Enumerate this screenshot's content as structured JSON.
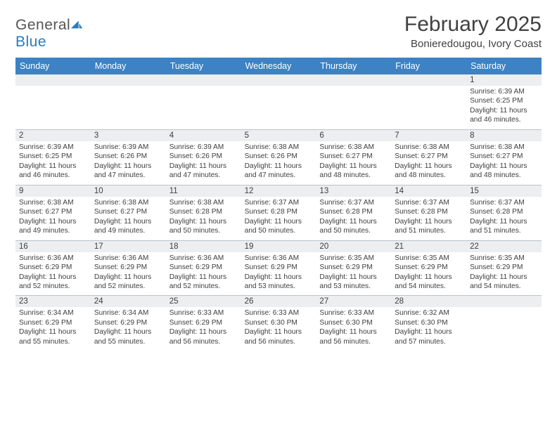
{
  "brand": {
    "name_general": "General",
    "name_blue": "Blue"
  },
  "title": "February 2025",
  "location": "Bonieredougou, Ivory Coast",
  "colors": {
    "header_bg": "#3c82c4",
    "daynum_bg": "#eceeef",
    "border": "#b9c3cc",
    "text": "#3e3e3e"
  },
  "weekdays": [
    "Sunday",
    "Monday",
    "Tuesday",
    "Wednesday",
    "Thursday",
    "Friday",
    "Saturday"
  ],
  "grid": [
    [
      {
        "n": "",
        "t": ""
      },
      {
        "n": "",
        "t": ""
      },
      {
        "n": "",
        "t": ""
      },
      {
        "n": "",
        "t": ""
      },
      {
        "n": "",
        "t": ""
      },
      {
        "n": "",
        "t": ""
      },
      {
        "n": "1",
        "t": "Sunrise: 6:39 AM\nSunset: 6:25 PM\nDaylight: 11 hours and 46 minutes."
      }
    ],
    [
      {
        "n": "2",
        "t": "Sunrise: 6:39 AM\nSunset: 6:25 PM\nDaylight: 11 hours and 46 minutes."
      },
      {
        "n": "3",
        "t": "Sunrise: 6:39 AM\nSunset: 6:26 PM\nDaylight: 11 hours and 47 minutes."
      },
      {
        "n": "4",
        "t": "Sunrise: 6:39 AM\nSunset: 6:26 PM\nDaylight: 11 hours and 47 minutes."
      },
      {
        "n": "5",
        "t": "Sunrise: 6:38 AM\nSunset: 6:26 PM\nDaylight: 11 hours and 47 minutes."
      },
      {
        "n": "6",
        "t": "Sunrise: 6:38 AM\nSunset: 6:27 PM\nDaylight: 11 hours and 48 minutes."
      },
      {
        "n": "7",
        "t": "Sunrise: 6:38 AM\nSunset: 6:27 PM\nDaylight: 11 hours and 48 minutes."
      },
      {
        "n": "8",
        "t": "Sunrise: 6:38 AM\nSunset: 6:27 PM\nDaylight: 11 hours and 48 minutes."
      }
    ],
    [
      {
        "n": "9",
        "t": "Sunrise: 6:38 AM\nSunset: 6:27 PM\nDaylight: 11 hours and 49 minutes."
      },
      {
        "n": "10",
        "t": "Sunrise: 6:38 AM\nSunset: 6:27 PM\nDaylight: 11 hours and 49 minutes."
      },
      {
        "n": "11",
        "t": "Sunrise: 6:38 AM\nSunset: 6:28 PM\nDaylight: 11 hours and 50 minutes."
      },
      {
        "n": "12",
        "t": "Sunrise: 6:37 AM\nSunset: 6:28 PM\nDaylight: 11 hours and 50 minutes."
      },
      {
        "n": "13",
        "t": "Sunrise: 6:37 AM\nSunset: 6:28 PM\nDaylight: 11 hours and 50 minutes."
      },
      {
        "n": "14",
        "t": "Sunrise: 6:37 AM\nSunset: 6:28 PM\nDaylight: 11 hours and 51 minutes."
      },
      {
        "n": "15",
        "t": "Sunrise: 6:37 AM\nSunset: 6:28 PM\nDaylight: 11 hours and 51 minutes."
      }
    ],
    [
      {
        "n": "16",
        "t": "Sunrise: 6:36 AM\nSunset: 6:29 PM\nDaylight: 11 hours and 52 minutes."
      },
      {
        "n": "17",
        "t": "Sunrise: 6:36 AM\nSunset: 6:29 PM\nDaylight: 11 hours and 52 minutes."
      },
      {
        "n": "18",
        "t": "Sunrise: 6:36 AM\nSunset: 6:29 PM\nDaylight: 11 hours and 52 minutes."
      },
      {
        "n": "19",
        "t": "Sunrise: 6:36 AM\nSunset: 6:29 PM\nDaylight: 11 hours and 53 minutes."
      },
      {
        "n": "20",
        "t": "Sunrise: 6:35 AM\nSunset: 6:29 PM\nDaylight: 11 hours and 53 minutes."
      },
      {
        "n": "21",
        "t": "Sunrise: 6:35 AM\nSunset: 6:29 PM\nDaylight: 11 hours and 54 minutes."
      },
      {
        "n": "22",
        "t": "Sunrise: 6:35 AM\nSunset: 6:29 PM\nDaylight: 11 hours and 54 minutes."
      }
    ],
    [
      {
        "n": "23",
        "t": "Sunrise: 6:34 AM\nSunset: 6:29 PM\nDaylight: 11 hours and 55 minutes."
      },
      {
        "n": "24",
        "t": "Sunrise: 6:34 AM\nSunset: 6:29 PM\nDaylight: 11 hours and 55 minutes."
      },
      {
        "n": "25",
        "t": "Sunrise: 6:33 AM\nSunset: 6:29 PM\nDaylight: 11 hours and 56 minutes."
      },
      {
        "n": "26",
        "t": "Sunrise: 6:33 AM\nSunset: 6:30 PM\nDaylight: 11 hours and 56 minutes."
      },
      {
        "n": "27",
        "t": "Sunrise: 6:33 AM\nSunset: 6:30 PM\nDaylight: 11 hours and 56 minutes."
      },
      {
        "n": "28",
        "t": "Sunrise: 6:32 AM\nSunset: 6:30 PM\nDaylight: 11 hours and 57 minutes."
      },
      {
        "n": "",
        "t": ""
      }
    ]
  ]
}
